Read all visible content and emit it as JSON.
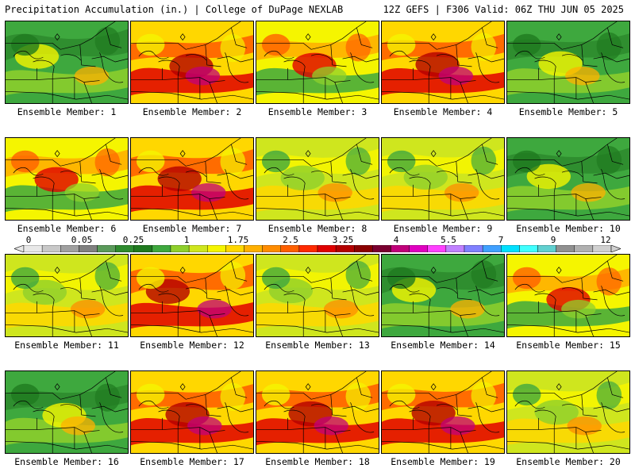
{
  "header": {
    "left_title": "Precipitation Accumulation (in.) | College of DuPage NEXLAB",
    "right_title": "12Z GEFS | F306 Valid: 06Z THU JUN 05 2025"
  },
  "colorbar": {
    "tick_labels": [
      "0",
      "0.05",
      "0.25",
      "1",
      "1.75",
      "2.5",
      "3.25",
      "4",
      "5.5",
      "7",
      "9",
      "12"
    ],
    "colors": [
      "#e8e8e8",
      "#c8c8c8",
      "#a0a0a0",
      "#808080",
      "#5a9a5a",
      "#2e8b2e",
      "#1f7a1f",
      "#3ea83e",
      "#8fd02c",
      "#cfe61e",
      "#f5f500",
      "#ffd700",
      "#ffb000",
      "#ff8c00",
      "#ff6000",
      "#ff2a00",
      "#e00000",
      "#b40000",
      "#8b0000",
      "#7a0030",
      "#c0007a",
      "#e000c0",
      "#ff40ff",
      "#c080ff",
      "#8080ff",
      "#40a0ff",
      "#00e0ff",
      "#40ffff",
      "#60d0d0",
      "#909090",
      "#b0b0b0",
      "#d0d0d0"
    ]
  },
  "members": [
    {
      "label": "Ensemble Member: 1",
      "scheme": "green"
    },
    {
      "label": "Ensemble Member: 2",
      "scheme": "red"
    },
    {
      "label": "Ensemble Member: 3",
      "scheme": "mixed"
    },
    {
      "label": "Ensemble Member: 4",
      "scheme": "red"
    },
    {
      "label": "Ensemble Member: 5",
      "scheme": "green"
    },
    {
      "label": "Ensemble Member: 6",
      "scheme": "mixed"
    },
    {
      "label": "Ensemble Member: 7",
      "scheme": "red"
    },
    {
      "label": "Ensemble Member: 8",
      "scheme": "yellow"
    },
    {
      "label": "Ensemble Member: 9",
      "scheme": "yellow"
    },
    {
      "label": "Ensemble Member: 10",
      "scheme": "green"
    },
    {
      "label": "Ensemble Member: 11",
      "scheme": "yellow"
    },
    {
      "label": "Ensemble Member: 12",
      "scheme": "red"
    },
    {
      "label": "Ensemble Member: 13",
      "scheme": "yellow"
    },
    {
      "label": "Ensemble Member: 14",
      "scheme": "green"
    },
    {
      "label": "Ensemble Member: 15",
      "scheme": "mixed"
    },
    {
      "label": "Ensemble Member: 16",
      "scheme": "green"
    },
    {
      "label": "Ensemble Member: 17",
      "scheme": "red"
    },
    {
      "label": "Ensemble Member: 18",
      "scheme": "red"
    },
    {
      "label": "Ensemble Member: 19",
      "scheme": "red"
    },
    {
      "label": "Ensemble Member: 20",
      "scheme": "yellow"
    }
  ]
}
